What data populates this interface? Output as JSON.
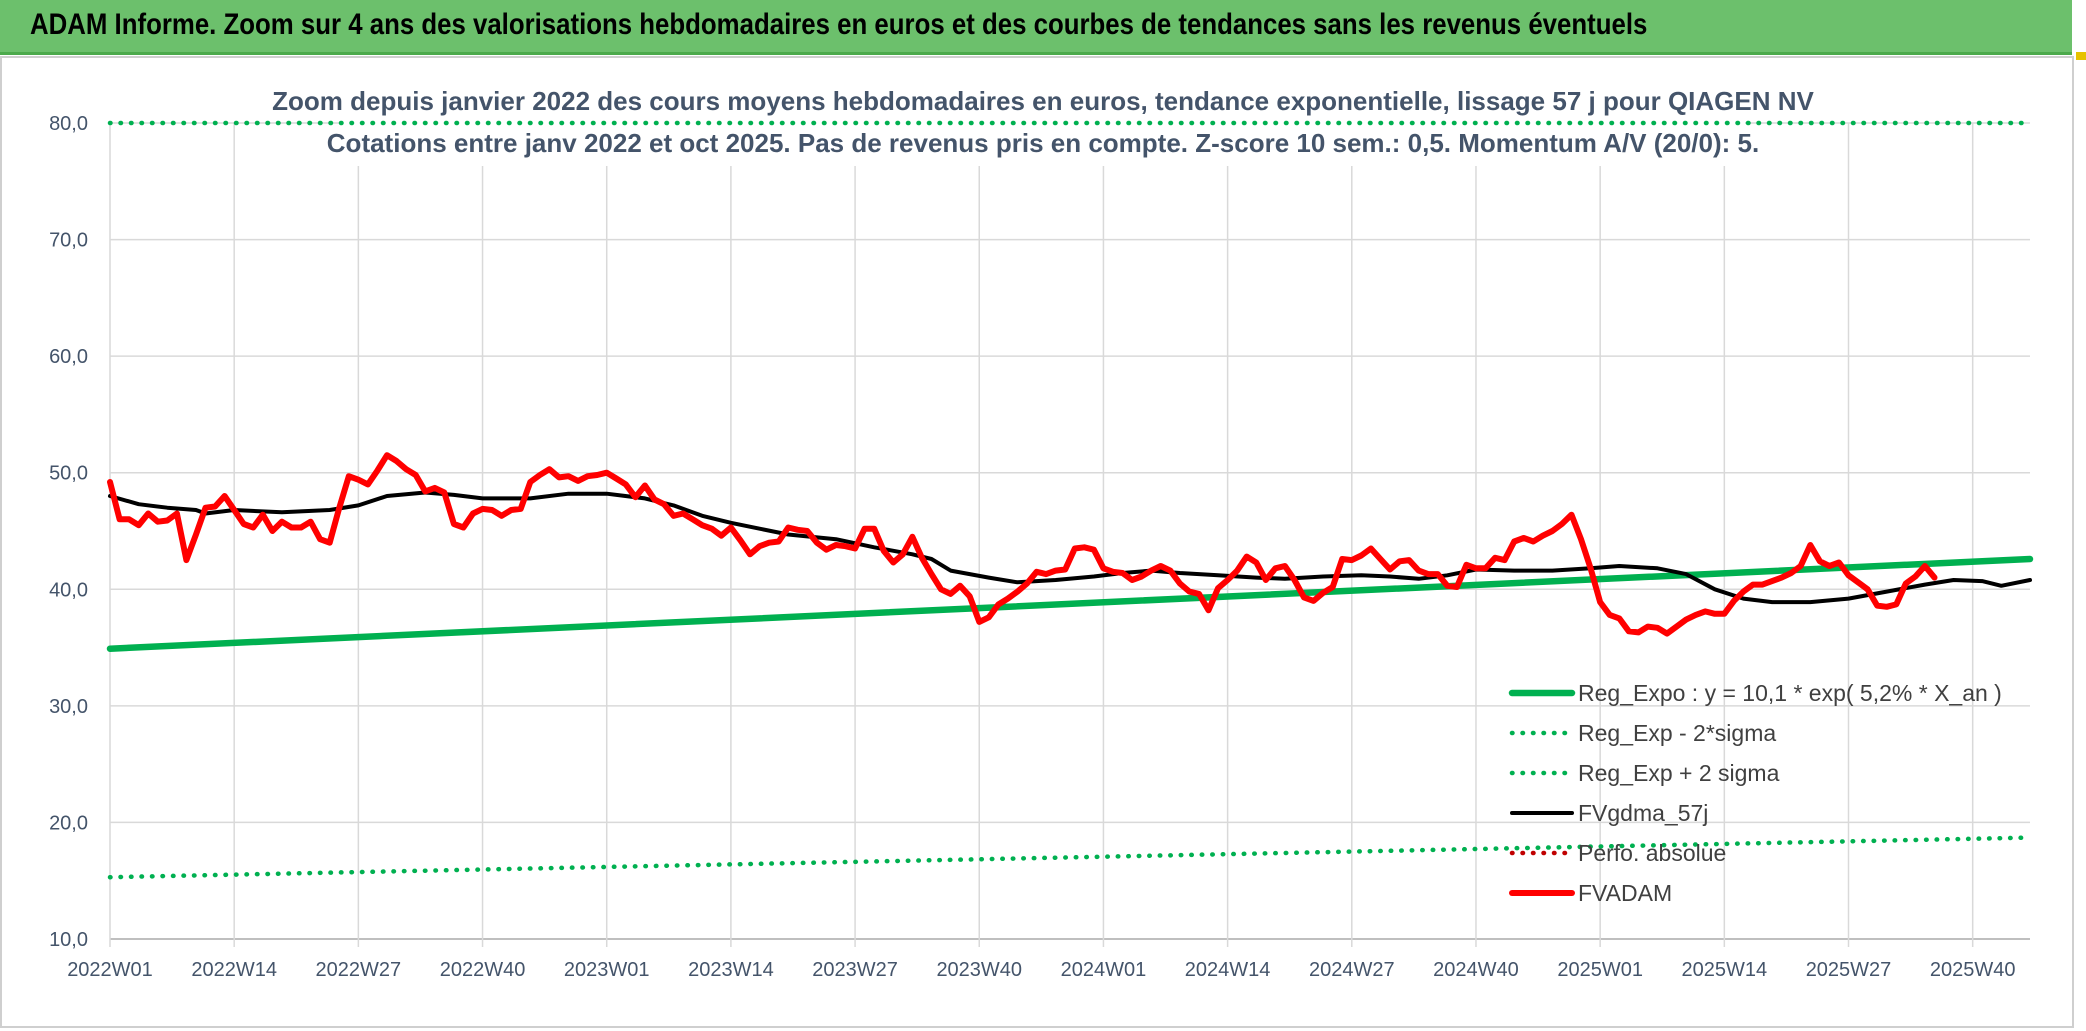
{
  "banner": {
    "title": "ADAM Informe. Zoom sur 4 ans des valorisations hebdomadaires en euros et des courbes de tendances sans les revenus éventuels"
  },
  "colors": {
    "banner": "#6cc06c",
    "reg_expo": "#00b050",
    "fvgdma": "#000000",
    "fvadam": "#ff0000",
    "perfo": "#c00000"
  },
  "chart_data": {
    "type": "line",
    "title": "Zoom depuis janvier 2022 des cours moyens hebdomadaires en euros, tendance exponentielle, lissage 57 j pour QIAGEN NV",
    "subtitle": "Cotations entre janv 2022 et oct 2025. Pas de revenus pris en compte. Z-score 10 sem.: 0,5. Momentum A/V (20/0): 5.",
    "ylim": [
      10,
      80
    ],
    "yticks": [
      "10,0",
      "20,0",
      "30,0",
      "40,0",
      "50,0",
      "60,0",
      "70,0",
      "80,0"
    ],
    "x_tick_labels": [
      "2022W01",
      "2022W14",
      "2022W27",
      "2022W40",
      "2023W01",
      "2023W14",
      "2023W27",
      "2023W40",
      "2024W01",
      "2024W14",
      "2024W27",
      "2024W40",
      "2025W01",
      "2025W14",
      "2025W27",
      "2025W40"
    ],
    "x_range_weeks": [
      0,
      201
    ],
    "grid": true,
    "legend_position": "bottom-right",
    "series": [
      {
        "name": "Reg_Expo : y = 10,1 * exp( 5,2% *  X_an )",
        "style": "solid-thick",
        "color": "#00b050",
        "points": [
          [
            0,
            34.9
          ],
          [
            201,
            42.6
          ]
        ]
      },
      {
        "name": "Reg_Exp - 2*sigma",
        "style": "dotted",
        "color": "#00b050",
        "points": [
          [
            0,
            15.3
          ],
          [
            201,
            18.7
          ]
        ]
      },
      {
        "name": "Reg_Exp + 2 sigma",
        "style": "dotted",
        "color": "#00b050",
        "points": [
          [
            0,
            80.0
          ],
          [
            201,
            80.0
          ]
        ]
      },
      {
        "name": "FVgdma_57j",
        "style": "solid",
        "color": "#000000",
        "points": [
          [
            0,
            48.0
          ],
          [
            3,
            47.3
          ],
          [
            6,
            47.0
          ],
          [
            9,
            46.8
          ],
          [
            10,
            46.5
          ],
          [
            13,
            46.8
          ],
          [
            18,
            46.6
          ],
          [
            23,
            46.8
          ],
          [
            26,
            47.2
          ],
          [
            29,
            48.0
          ],
          [
            33,
            48.3
          ],
          [
            36,
            48.1
          ],
          [
            39,
            47.8
          ],
          [
            44,
            47.8
          ],
          [
            48,
            48.2
          ],
          [
            52,
            48.2
          ],
          [
            56,
            47.8
          ],
          [
            59,
            47.2
          ],
          [
            62,
            46.3
          ],
          [
            65,
            45.7
          ],
          [
            68,
            45.2
          ],
          [
            71,
            44.7
          ],
          [
            76,
            44.3
          ],
          [
            80,
            43.6
          ],
          [
            84,
            43.0
          ],
          [
            86,
            42.6
          ],
          [
            88,
            41.6
          ],
          [
            92,
            41.0
          ],
          [
            95,
            40.6
          ],
          [
            99,
            40.8
          ],
          [
            103,
            41.1
          ],
          [
            106,
            41.4
          ],
          [
            109,
            41.6
          ],
          [
            112,
            41.4
          ],
          [
            116,
            41.2
          ],
          [
            120,
            41.0
          ],
          [
            123,
            40.9
          ],
          [
            127,
            41.1
          ],
          [
            131,
            41.2
          ],
          [
            134,
            41.1
          ],
          [
            137,
            40.9
          ],
          [
            140,
            41.2
          ],
          [
            143,
            41.7
          ],
          [
            147,
            41.6
          ],
          [
            151,
            41.6
          ],
          [
            155,
            41.8
          ],
          [
            158,
            42.0
          ],
          [
            162,
            41.8
          ],
          [
            165,
            41.3
          ],
          [
            168,
            40.0
          ],
          [
            171,
            39.2
          ],
          [
            174,
            38.9
          ],
          [
            178,
            38.9
          ],
          [
            182,
            39.2
          ],
          [
            186,
            39.8
          ],
          [
            190,
            40.4
          ],
          [
            193,
            40.8
          ],
          [
            196,
            40.7
          ],
          [
            198,
            40.3
          ],
          [
            201,
            40.8
          ]
        ]
      },
      {
        "name": "Perfo. absolue",
        "style": "dotted",
        "color": "#c00000",
        "points": []
      },
      {
        "name": "FVADAM",
        "style": "solid-thick",
        "color": "#ff0000",
        "points": [
          [
            0,
            49.2
          ],
          [
            1,
            46.0
          ],
          [
            2,
            46.0
          ],
          [
            3,
            45.5
          ],
          [
            4,
            46.5
          ],
          [
            5,
            45.8
          ],
          [
            6,
            45.9
          ],
          [
            7,
            46.5
          ],
          [
            8,
            42.5
          ],
          [
            9,
            44.7
          ],
          [
            10,
            47.0
          ],
          [
            11,
            47.1
          ],
          [
            12,
            48.0
          ],
          [
            13,
            46.8
          ],
          [
            14,
            45.6
          ],
          [
            15,
            45.3
          ],
          [
            16,
            46.4
          ],
          [
            17,
            45.0
          ],
          [
            18,
            45.8
          ],
          [
            19,
            45.3
          ],
          [
            20,
            45.3
          ],
          [
            21,
            45.8
          ],
          [
            22,
            44.3
          ],
          [
            23,
            44.0
          ],
          [
            24,
            47.0
          ],
          [
            25,
            49.7
          ],
          [
            26,
            49.4
          ],
          [
            27,
            49.0
          ],
          [
            28,
            50.2
          ],
          [
            29,
            51.5
          ],
          [
            30,
            51.0
          ],
          [
            31,
            50.3
          ],
          [
            32,
            49.8
          ],
          [
            33,
            48.4
          ],
          [
            34,
            48.7
          ],
          [
            35,
            48.3
          ],
          [
            36,
            45.6
          ],
          [
            37,
            45.3
          ],
          [
            38,
            46.5
          ],
          [
            39,
            46.9
          ],
          [
            40,
            46.8
          ],
          [
            41,
            46.3
          ],
          [
            42,
            46.8
          ],
          [
            43,
            46.9
          ],
          [
            44,
            49.2
          ],
          [
            45,
            49.8
          ],
          [
            46,
            50.3
          ],
          [
            47,
            49.6
          ],
          [
            48,
            49.7
          ],
          [
            49,
            49.3
          ],
          [
            50,
            49.7
          ],
          [
            51,
            49.8
          ],
          [
            52,
            50.0
          ],
          [
            53,
            49.5
          ],
          [
            54,
            49.0
          ],
          [
            55,
            47.9
          ],
          [
            56,
            48.9
          ],
          [
            57,
            47.7
          ],
          [
            58,
            47.3
          ],
          [
            59,
            46.3
          ],
          [
            60,
            46.5
          ],
          [
            61,
            46.0
          ],
          [
            62,
            45.5
          ],
          [
            63,
            45.2
          ],
          [
            64,
            44.6
          ],
          [
            65,
            45.3
          ],
          [
            66,
            44.2
          ],
          [
            67,
            43.0
          ],
          [
            68,
            43.7
          ],
          [
            69,
            44.0
          ],
          [
            70,
            44.1
          ],
          [
            71,
            45.3
          ],
          [
            72,
            45.1
          ],
          [
            73,
            45.0
          ],
          [
            74,
            44.0
          ],
          [
            75,
            43.4
          ],
          [
            76,
            43.8
          ],
          [
            77,
            43.7
          ],
          [
            78,
            43.5
          ],
          [
            79,
            45.2
          ],
          [
            80,
            45.2
          ],
          [
            81,
            43.3
          ],
          [
            82,
            42.3
          ],
          [
            83,
            43.0
          ],
          [
            84,
            44.5
          ],
          [
            85,
            42.7
          ],
          [
            86,
            41.3
          ],
          [
            87,
            40.0
          ],
          [
            88,
            39.6
          ],
          [
            89,
            40.3
          ],
          [
            90,
            39.4
          ],
          [
            91,
            37.2
          ],
          [
            92,
            37.6
          ],
          [
            93,
            38.7
          ],
          [
            94,
            39.2
          ],
          [
            95,
            39.8
          ],
          [
            96,
            40.5
          ],
          [
            97,
            41.5
          ],
          [
            98,
            41.3
          ],
          [
            99,
            41.6
          ],
          [
            100,
            41.7
          ],
          [
            101,
            43.5
          ],
          [
            102,
            43.6
          ],
          [
            103,
            43.4
          ],
          [
            104,
            41.8
          ],
          [
            105,
            41.5
          ],
          [
            106,
            41.4
          ],
          [
            107,
            40.8
          ],
          [
            108,
            41.1
          ],
          [
            109,
            41.6
          ],
          [
            110,
            42.0
          ],
          [
            111,
            41.6
          ],
          [
            112,
            40.5
          ],
          [
            113,
            39.8
          ],
          [
            114,
            39.6
          ],
          [
            115,
            38.2
          ],
          [
            116,
            40.1
          ],
          [
            117,
            40.8
          ],
          [
            118,
            41.6
          ],
          [
            119,
            42.8
          ],
          [
            120,
            42.3
          ],
          [
            121,
            40.8
          ],
          [
            122,
            41.8
          ],
          [
            123,
            42.0
          ],
          [
            124,
            40.8
          ],
          [
            125,
            39.3
          ],
          [
            126,
            39.0
          ],
          [
            127,
            39.7
          ],
          [
            128,
            40.2
          ],
          [
            129,
            42.6
          ],
          [
            130,
            42.5
          ],
          [
            131,
            42.9
          ],
          [
            132,
            43.5
          ],
          [
            133,
            42.6
          ],
          [
            134,
            41.7
          ],
          [
            135,
            42.4
          ],
          [
            136,
            42.5
          ],
          [
            137,
            41.6
          ],
          [
            138,
            41.3
          ],
          [
            139,
            41.3
          ],
          [
            140,
            40.3
          ],
          [
            141,
            40.2
          ],
          [
            142,
            42.1
          ],
          [
            143,
            41.8
          ],
          [
            144,
            41.8
          ],
          [
            145,
            42.7
          ],
          [
            146,
            42.5
          ],
          [
            147,
            44.1
          ],
          [
            148,
            44.4
          ],
          [
            149,
            44.1
          ],
          [
            150,
            44.6
          ],
          [
            151,
            45.0
          ],
          [
            152,
            45.6
          ],
          [
            153,
            46.4
          ],
          [
            154,
            44.3
          ],
          [
            155,
            41.8
          ],
          [
            156,
            38.9
          ],
          [
            157,
            37.8
          ],
          [
            158,
            37.5
          ],
          [
            159,
            36.4
          ],
          [
            160,
            36.3
          ],
          [
            161,
            36.8
          ],
          [
            162,
            36.7
          ],
          [
            163,
            36.2
          ],
          [
            164,
            36.8
          ],
          [
            165,
            37.4
          ],
          [
            166,
            37.8
          ],
          [
            167,
            38.1
          ],
          [
            168,
            37.9
          ],
          [
            169,
            37.9
          ],
          [
            170,
            39.0
          ],
          [
            171,
            39.8
          ],
          [
            172,
            40.4
          ],
          [
            173,
            40.4
          ],
          [
            174,
            40.7
          ],
          [
            175,
            41.0
          ],
          [
            176,
            41.4
          ],
          [
            177,
            42.0
          ],
          [
            178,
            43.8
          ],
          [
            179,
            42.4
          ],
          [
            180,
            42.0
          ],
          [
            181,
            42.3
          ],
          [
            182,
            41.2
          ],
          [
            183,
            40.6
          ],
          [
            184,
            40.0
          ],
          [
            185,
            38.6
          ],
          [
            186,
            38.5
          ],
          [
            187,
            38.7
          ],
          [
            188,
            40.5
          ],
          [
            189,
            41.1
          ],
          [
            190,
            42.0
          ],
          [
            191,
            41.0
          ]
        ]
      }
    ]
  }
}
